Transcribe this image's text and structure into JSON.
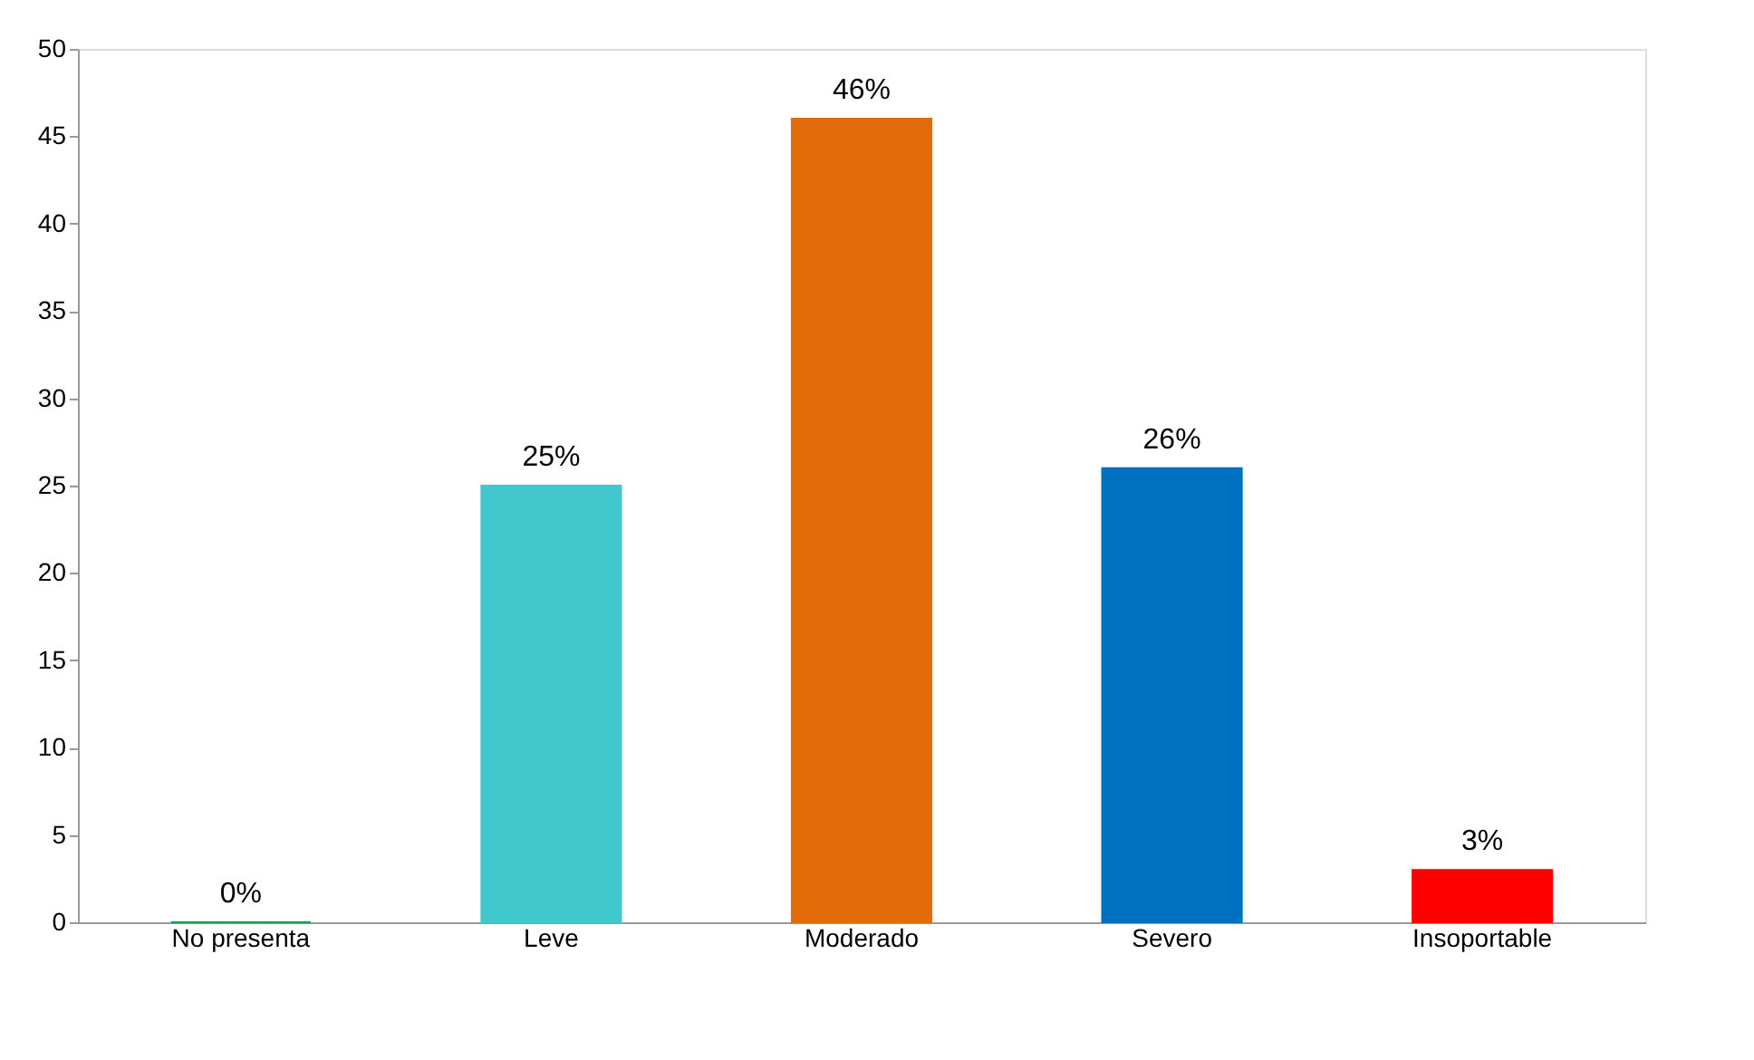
{
  "chart_data": {
    "type": "bar",
    "categories": [
      "No presenta",
      "Leve",
      "Moderado",
      "Severo",
      "Insoportable"
    ],
    "values": [
      0,
      25,
      46,
      26,
      3
    ],
    "colors": [
      "#00a050",
      "#40c8cc",
      "#e36c0a",
      "#0070c0",
      "#ff0000"
    ],
    "value_labels": [
      "0%",
      "25%",
      "46%",
      "26%",
      "3%"
    ],
    "ylim": [
      0,
      50
    ],
    "yticks": [
      0,
      5,
      10,
      15,
      20,
      25,
      30,
      35,
      40,
      45,
      50
    ],
    "grid": false
  }
}
